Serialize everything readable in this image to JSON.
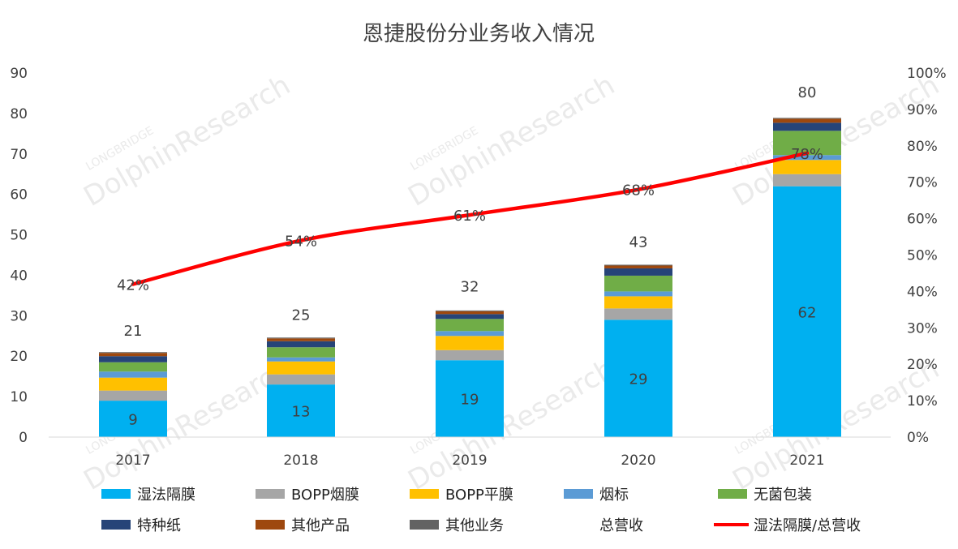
{
  "chart_data": {
    "type": "bar",
    "title": "恩捷股份分业务收入情况",
    "categories": [
      "2017",
      "2018",
      "2019",
      "2020",
      "2021"
    ],
    "ylim": [
      0,
      90
    ],
    "y_ticks": [
      "0",
      "10",
      "20",
      "30",
      "40",
      "50",
      "60",
      "70",
      "80",
      "90"
    ],
    "y2lim": [
      0,
      100
    ],
    "y2_ticks": [
      "0%",
      "10%",
      "20%",
      "30%",
      "40%",
      "50%",
      "60%",
      "70%",
      "80%",
      "90%",
      "100%"
    ],
    "stacked": true,
    "series": [
      {
        "name": "湿法隔膜",
        "color": "#00b0f0",
        "values": [
          9,
          13,
          19,
          29,
          62
        ],
        "labels": [
          "9",
          "13",
          "19",
          "29",
          "62"
        ]
      },
      {
        "name": "BOPP烟膜",
        "color": "#a6a6a6",
        "values": [
          2.5,
          2.5,
          2.5,
          2.8,
          3.0
        ]
      },
      {
        "name": "BOPP平膜",
        "color": "#ffc000",
        "values": [
          3.2,
          3.2,
          3.5,
          3.0,
          3.5
        ]
      },
      {
        "name": "烟标",
        "color": "#5b9bd5",
        "values": [
          1.5,
          1.0,
          1.2,
          1.2,
          1.2
        ]
      },
      {
        "name": "无菌包装",
        "color": "#70ad47",
        "values": [
          2.3,
          2.5,
          3.0,
          3.9,
          6.0
        ]
      },
      {
        "name": "特种纸",
        "color": "#264478",
        "values": [
          1.5,
          1.5,
          1.2,
          1.8,
          2.0
        ]
      },
      {
        "name": "其他产品",
        "color": "#9e480e",
        "values": [
          0.8,
          0.7,
          0.7,
          0.7,
          1.0
        ]
      },
      {
        "name": "其他业务",
        "color": "#636363",
        "values": [
          0.2,
          0.2,
          0.2,
          0.2,
          0.2
        ]
      }
    ],
    "totals": {
      "name": "总营收",
      "values": [
        21,
        25,
        32,
        43,
        80
      ],
      "labels": [
        "21",
        "25",
        "32",
        "43",
        "80"
      ]
    },
    "line": {
      "name": "湿法隔膜/总营收",
      "color": "#ff0000",
      "values": [
        42,
        54,
        61,
        68,
        78
      ],
      "labels": [
        "42%",
        "54%",
        "61%",
        "68%",
        "78%"
      ]
    },
    "watermark": [
      "LONGBRIDGE",
      "DolphinResearch"
    ],
    "legend_position": "bottom"
  }
}
